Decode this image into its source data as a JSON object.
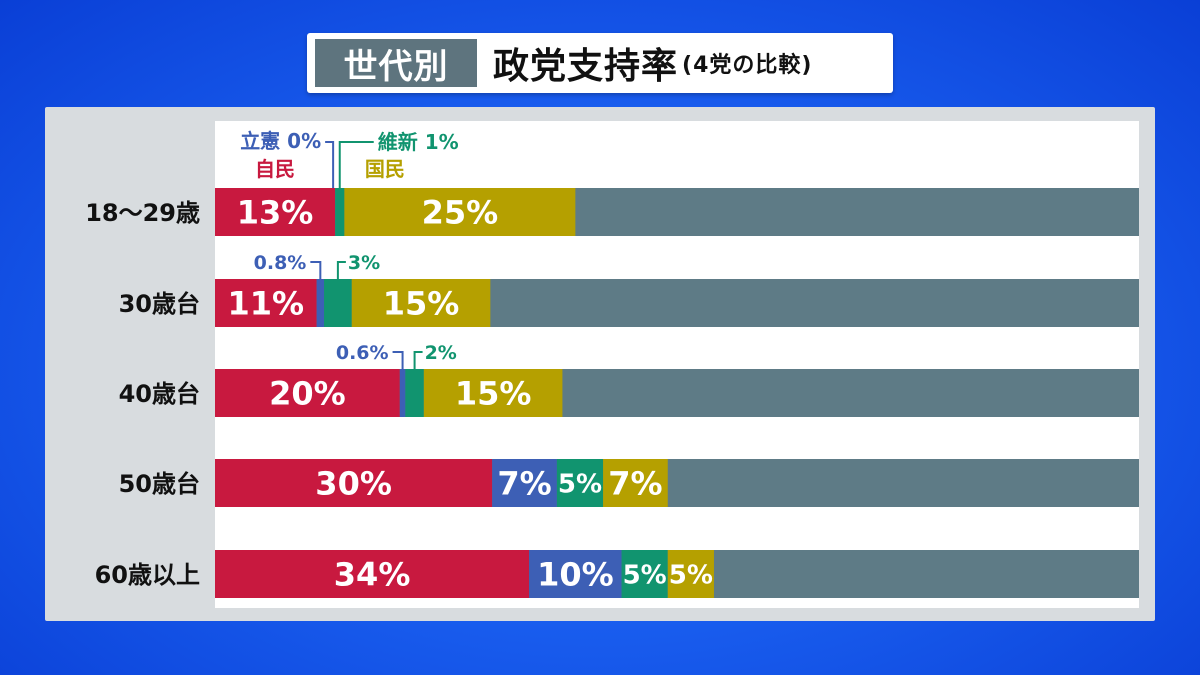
{
  "title": {
    "tag": "世代別",
    "main": "政党支持率",
    "sub": "(4党の比較)"
  },
  "colors": {
    "ldp": "#c8193f",
    "cdp": "#3d5fb5",
    "ishin": "#11946f",
    "dpfp": "#b5a000",
    "other": "#5e7b86"
  },
  "chart_data": {
    "type": "bar",
    "orientation": "horizontal",
    "stacked": true,
    "xlim": [
      0,
      100
    ],
    "categories": [
      "18〜29歳",
      "30歳台",
      "40歳台",
      "50歳台",
      "60歳以上"
    ],
    "series": [
      {
        "name": "自民",
        "key": "ldp",
        "values": [
          13,
          11,
          20,
          30,
          34
        ],
        "labels": [
          "13%",
          "11%",
          "20%",
          "30%",
          "34%"
        ]
      },
      {
        "name": "立憲",
        "key": "cdp",
        "values": [
          0,
          0.8,
          0.6,
          7,
          10
        ],
        "labels": [
          "",
          "",
          "",
          "7%",
          "10%"
        ]
      },
      {
        "name": "維新",
        "key": "ishin",
        "values": [
          1,
          3,
          2,
          5,
          5
        ],
        "labels": [
          "",
          "",
          "",
          "5%",
          "5%"
        ]
      },
      {
        "name": "国民",
        "key": "dpfp",
        "values": [
          25,
          15,
          15,
          7,
          5
        ],
        "labels": [
          "25%",
          "15%",
          "15%",
          "7%",
          "5%"
        ]
      }
    ],
    "annotations": [
      {
        "row": 0,
        "series": "立憲",
        "text": "立憲 0%"
      },
      {
        "row": 0,
        "series": "維新",
        "text": "維新 1%"
      },
      {
        "row": 0,
        "series": "自民",
        "text": "自民"
      },
      {
        "row": 0,
        "series": "国民",
        "text": "国民"
      },
      {
        "row": 1,
        "series": "立憲",
        "text": "0.8%"
      },
      {
        "row": 1,
        "series": "維新",
        "text": "3%"
      },
      {
        "row": 2,
        "series": "立憲",
        "text": "0.6%"
      },
      {
        "row": 2,
        "series": "維新",
        "text": "2%"
      }
    ]
  }
}
